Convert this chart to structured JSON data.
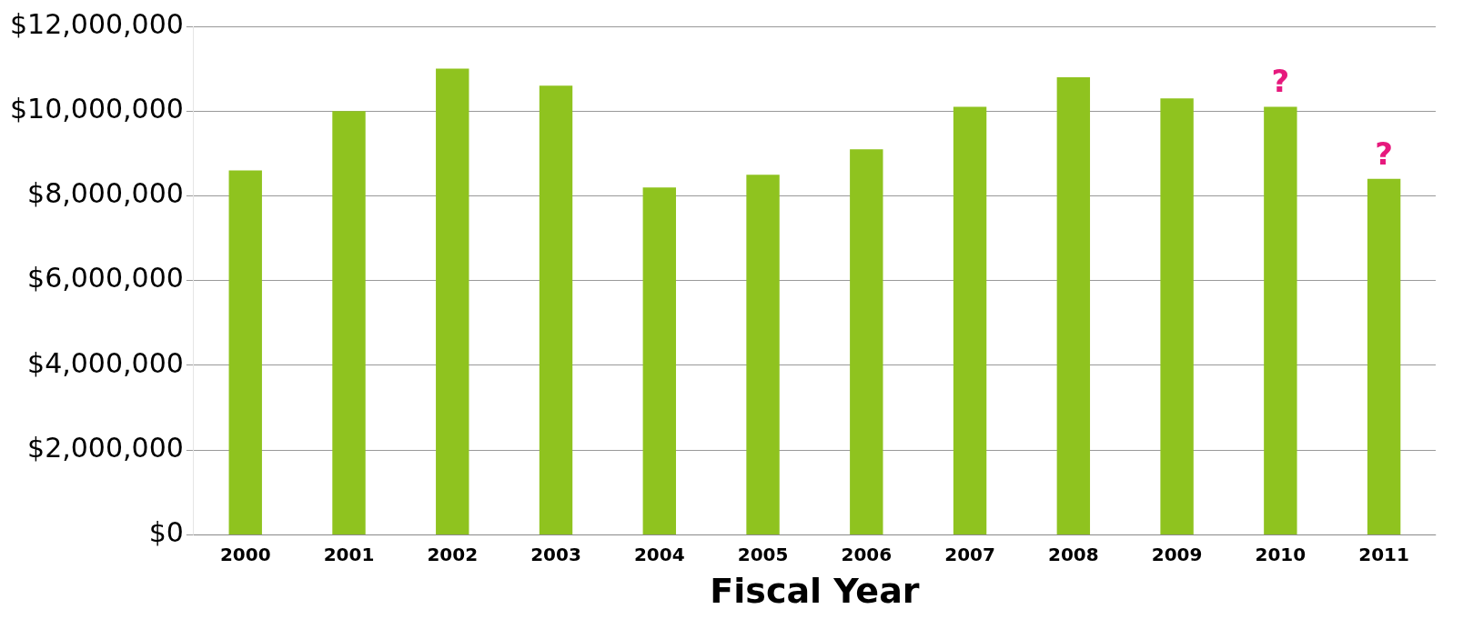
{
  "chart_data": {
    "type": "bar",
    "xlabel": "Fiscal Year",
    "categories": [
      "2000",
      "2001",
      "2002",
      "2003",
      "2004",
      "2005",
      "2006",
      "2007",
      "2008",
      "2009",
      "2010",
      "2011"
    ],
    "values": [
      8600000,
      10000000,
      11000000,
      10600000,
      8200000,
      8500000,
      9100000,
      10100000,
      10800000,
      10300000,
      10100000,
      8400000
    ],
    "color": "#8fc31f",
    "ylim": [
      0,
      12000000
    ],
    "yticks": [
      {
        "value": 0,
        "label": "$0"
      },
      {
        "value": 2000000,
        "label": "$2,000,000"
      },
      {
        "value": 4000000,
        "label": "$4,000,000"
      },
      {
        "value": 6000000,
        "label": "$6,000,000"
      },
      {
        "value": 8000000,
        "label": "$8,000,000"
      },
      {
        "value": 10000000,
        "label": "$10,000,000"
      },
      {
        "value": 12000000,
        "label": "$12,000,000"
      }
    ],
    "grid": "y",
    "annotations": [
      {
        "text": "?",
        "x": "2010",
        "y": 10100000
      },
      {
        "text": "?",
        "x": "2011",
        "y": 8400000
      }
    ]
  }
}
